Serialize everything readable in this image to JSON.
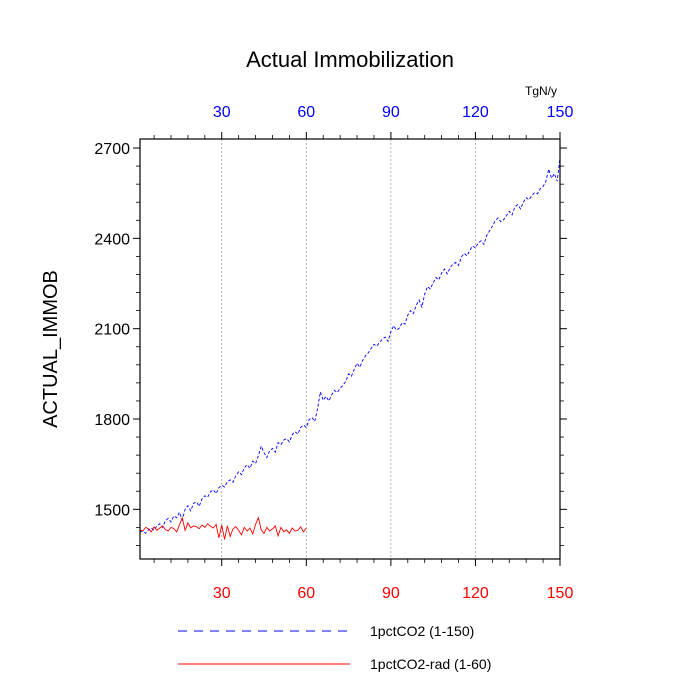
{
  "chart_data": {
    "type": "line",
    "title": "Actual Immobilization",
    "ylabel": "ACTUAL_IMMOB",
    "xlabel": "",
    "top_axis_unit": "TgN/y",
    "xlim": [
      1,
      150
    ],
    "ylim": [
      1335,
      2730
    ],
    "x_ticks": [
      "30",
      "60",
      "90",
      "120",
      "150"
    ],
    "y_ticks": [
      "1500",
      "1800",
      "2100",
      "2400",
      "2700"
    ],
    "grid": "dashed vertical lines at x = 30, 60, 90, 120",
    "legend_position": "bottom",
    "colors": {
      "bottom_tick_labels": "#ff0000",
      "top_tick_labels": "#0000ff",
      "series1": "#0000ff",
      "series2": "#ff0000"
    },
    "series": [
      {
        "name": "1pctCO2 (1-150)",
        "style": "dashed",
        "color": "#0000ff",
        "x": [
          1,
          2,
          3,
          4,
          5,
          6,
          7,
          8,
          9,
          10,
          11,
          12,
          13,
          14,
          15,
          16,
          17,
          18,
          19,
          20,
          21,
          22,
          23,
          24,
          25,
          26,
          27,
          28,
          29,
          30,
          31,
          32,
          33,
          34,
          35,
          36,
          37,
          38,
          39,
          40,
          41,
          42,
          43,
          44,
          45,
          46,
          47,
          48,
          49,
          50,
          51,
          52,
          53,
          54,
          55,
          56,
          57,
          58,
          59,
          60,
          61,
          62,
          63,
          64,
          65,
          66,
          67,
          68,
          69,
          70,
          71,
          72,
          73,
          74,
          75,
          76,
          77,
          78,
          79,
          80,
          81,
          82,
          83,
          84,
          85,
          86,
          87,
          88,
          89,
          90,
          91,
          92,
          93,
          94,
          95,
          96,
          97,
          98,
          99,
          100,
          101,
          102,
          103,
          104,
          105,
          106,
          107,
          108,
          109,
          110,
          111,
          112,
          113,
          114,
          115,
          116,
          117,
          118,
          119,
          120,
          121,
          122,
          123,
          124,
          125,
          126,
          127,
          128,
          129,
          130,
          131,
          132,
          133,
          134,
          135,
          136,
          137,
          138,
          139,
          140,
          141,
          142,
          143,
          144,
          145,
          146,
          147,
          148,
          149,
          150
        ],
        "y": [
          1425,
          1428,
          1420,
          1432,
          1438,
          1430,
          1445,
          1452,
          1440,
          1462,
          1470,
          1458,
          1478,
          1472,
          1490,
          1465,
          1500,
          1512,
          1495,
          1520,
          1525,
          1510,
          1535,
          1545,
          1540,
          1558,
          1565,
          1552,
          1572,
          1580,
          1574,
          1592,
          1598,
          1590,
          1612,
          1625,
          1615,
          1638,
          1648,
          1636,
          1660,
          1652,
          1678,
          1710,
          1688,
          1672,
          1695,
          1702,
          1690,
          1722,
          1715,
          1730,
          1735,
          1724,
          1748,
          1758,
          1750,
          1772,
          1780,
          1772,
          1798,
          1805,
          1792,
          1835,
          1890,
          1862,
          1875,
          1860,
          1880,
          1895,
          1888,
          1902,
          1912,
          1925,
          1950,
          1942,
          1965,
          1985,
          1972,
          1995,
          2010,
          2020,
          2035,
          2048,
          2042,
          2055,
          2065,
          2072,
          2058,
          2090,
          2110,
          2095,
          2102,
          2120,
          2115,
          2145,
          2160,
          2150,
          2178,
          2195,
          2172,
          2215,
          2240,
          2232,
          2252,
          2270,
          2262,
          2285,
          2298,
          2282,
          2302,
          2315,
          2320,
          2310,
          2338,
          2350,
          2342,
          2360,
          2375,
          2368,
          2385,
          2392,
          2380,
          2410,
          2425,
          2440,
          2458,
          2468,
          2455,
          2462,
          2475,
          2490,
          2478,
          2505,
          2512,
          2498,
          2520,
          2535,
          2528,
          2542,
          2552,
          2548,
          2565,
          2572,
          2590,
          2630,
          2600,
          2615,
          2590,
          2668
        ]
      },
      {
        "name": "1pctCO2-rad (1-60)",
        "style": "solid",
        "color": "#ff0000",
        "x": [
          1,
          2,
          3,
          4,
          5,
          6,
          7,
          8,
          9,
          10,
          11,
          12,
          13,
          14,
          15,
          16,
          17,
          18,
          19,
          20,
          21,
          22,
          23,
          24,
          25,
          26,
          27,
          28,
          29,
          30,
          31,
          32,
          33,
          34,
          35,
          36,
          37,
          38,
          39,
          40,
          41,
          42,
          43,
          44,
          45,
          46,
          47,
          48,
          49,
          50,
          51,
          52,
          53,
          54,
          55,
          56,
          57,
          58,
          59,
          60
        ],
        "y": [
          1432,
          1428,
          1440,
          1435,
          1425,
          1442,
          1430,
          1438,
          1445,
          1433,
          1428,
          1440,
          1436,
          1425,
          1448,
          1472,
          1430,
          1455,
          1438,
          1445,
          1442,
          1436,
          1448,
          1440,
          1452,
          1444,
          1438,
          1450,
          1405,
          1448,
          1400,
          1445,
          1410,
          1435,
          1442,
          1430,
          1415,
          1440,
          1428,
          1438,
          1418,
          1450,
          1472,
          1432,
          1420,
          1440,
          1428,
          1435,
          1445,
          1412,
          1440,
          1425,
          1432,
          1420,
          1438,
          1428,
          1430,
          1442,
          1425,
          1438
        ]
      }
    ]
  }
}
